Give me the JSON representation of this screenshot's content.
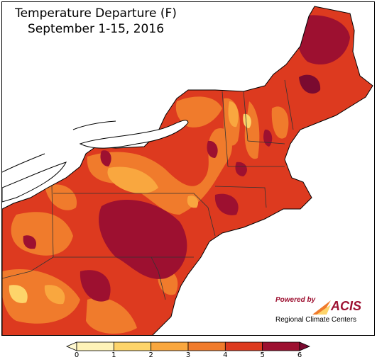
{
  "title": {
    "line1": "Temperature Departure (F)",
    "line2": "September 1-15, 2016"
  },
  "legend": {
    "ticks": [
      "0",
      "1",
      "2",
      "3",
      "4",
      "5",
      "6"
    ],
    "bins": [
      {
        "from": 0,
        "to": 1,
        "color": "#fff3b8"
      },
      {
        "from": 1,
        "to": 2,
        "color": "#fdd46a"
      },
      {
        "from": 2,
        "to": 3,
        "color": "#f9a73f"
      },
      {
        "from": 3,
        "to": 4,
        "color": "#f07b2c"
      },
      {
        "from": 4,
        "to": 5,
        "color": "#dd3a1f"
      },
      {
        "from": 5,
        "to": 6,
        "color": "#9d1030"
      }
    ],
    "under_color": "#fff8d0",
    "over_color": "#7a0a30"
  },
  "logo": {
    "powered_by": "Powered by",
    "brand": "ACIS",
    "subtitle": "Regional Climate Centers"
  },
  "colors": {
    "water": "#ffffff",
    "outside": "#ffffff",
    "border": "#000000",
    "logo_red": "#9d1030"
  }
}
